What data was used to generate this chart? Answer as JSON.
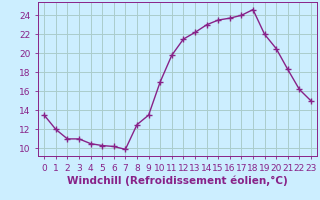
{
  "x": [
    0,
    1,
    2,
    3,
    4,
    5,
    6,
    7,
    8,
    9,
    10,
    11,
    12,
    13,
    14,
    15,
    16,
    17,
    18,
    19,
    20,
    21,
    22,
    23
  ],
  "y": [
    13.5,
    12.0,
    11.0,
    11.0,
    10.5,
    10.3,
    10.2,
    9.9,
    12.5,
    13.5,
    17.0,
    19.8,
    21.5,
    22.2,
    23.0,
    23.5,
    23.7,
    24.0,
    24.6,
    22.0,
    20.5,
    18.3,
    16.2,
    15.0
  ],
  "line_color": "#882288",
  "marker": "+",
  "marker_size": 4,
  "marker_lw": 1.0,
  "line_width": 1.0,
  "bg_color": "#cceeff",
  "grid_color": "#aacccc",
  "xlabel": "Windchill (Refroidissement éolien,°C)",
  "xlim": [
    -0.5,
    23.5
  ],
  "ylim": [
    9.2,
    25.4
  ],
  "yticks": [
    10,
    12,
    14,
    16,
    18,
    20,
    22,
    24
  ],
  "xticks": [
    0,
    1,
    2,
    3,
    4,
    5,
    6,
    7,
    8,
    9,
    10,
    11,
    12,
    13,
    14,
    15,
    16,
    17,
    18,
    19,
    20,
    21,
    22,
    23
  ],
  "tick_fontsize": 6.5,
  "label_fontsize": 7.5
}
